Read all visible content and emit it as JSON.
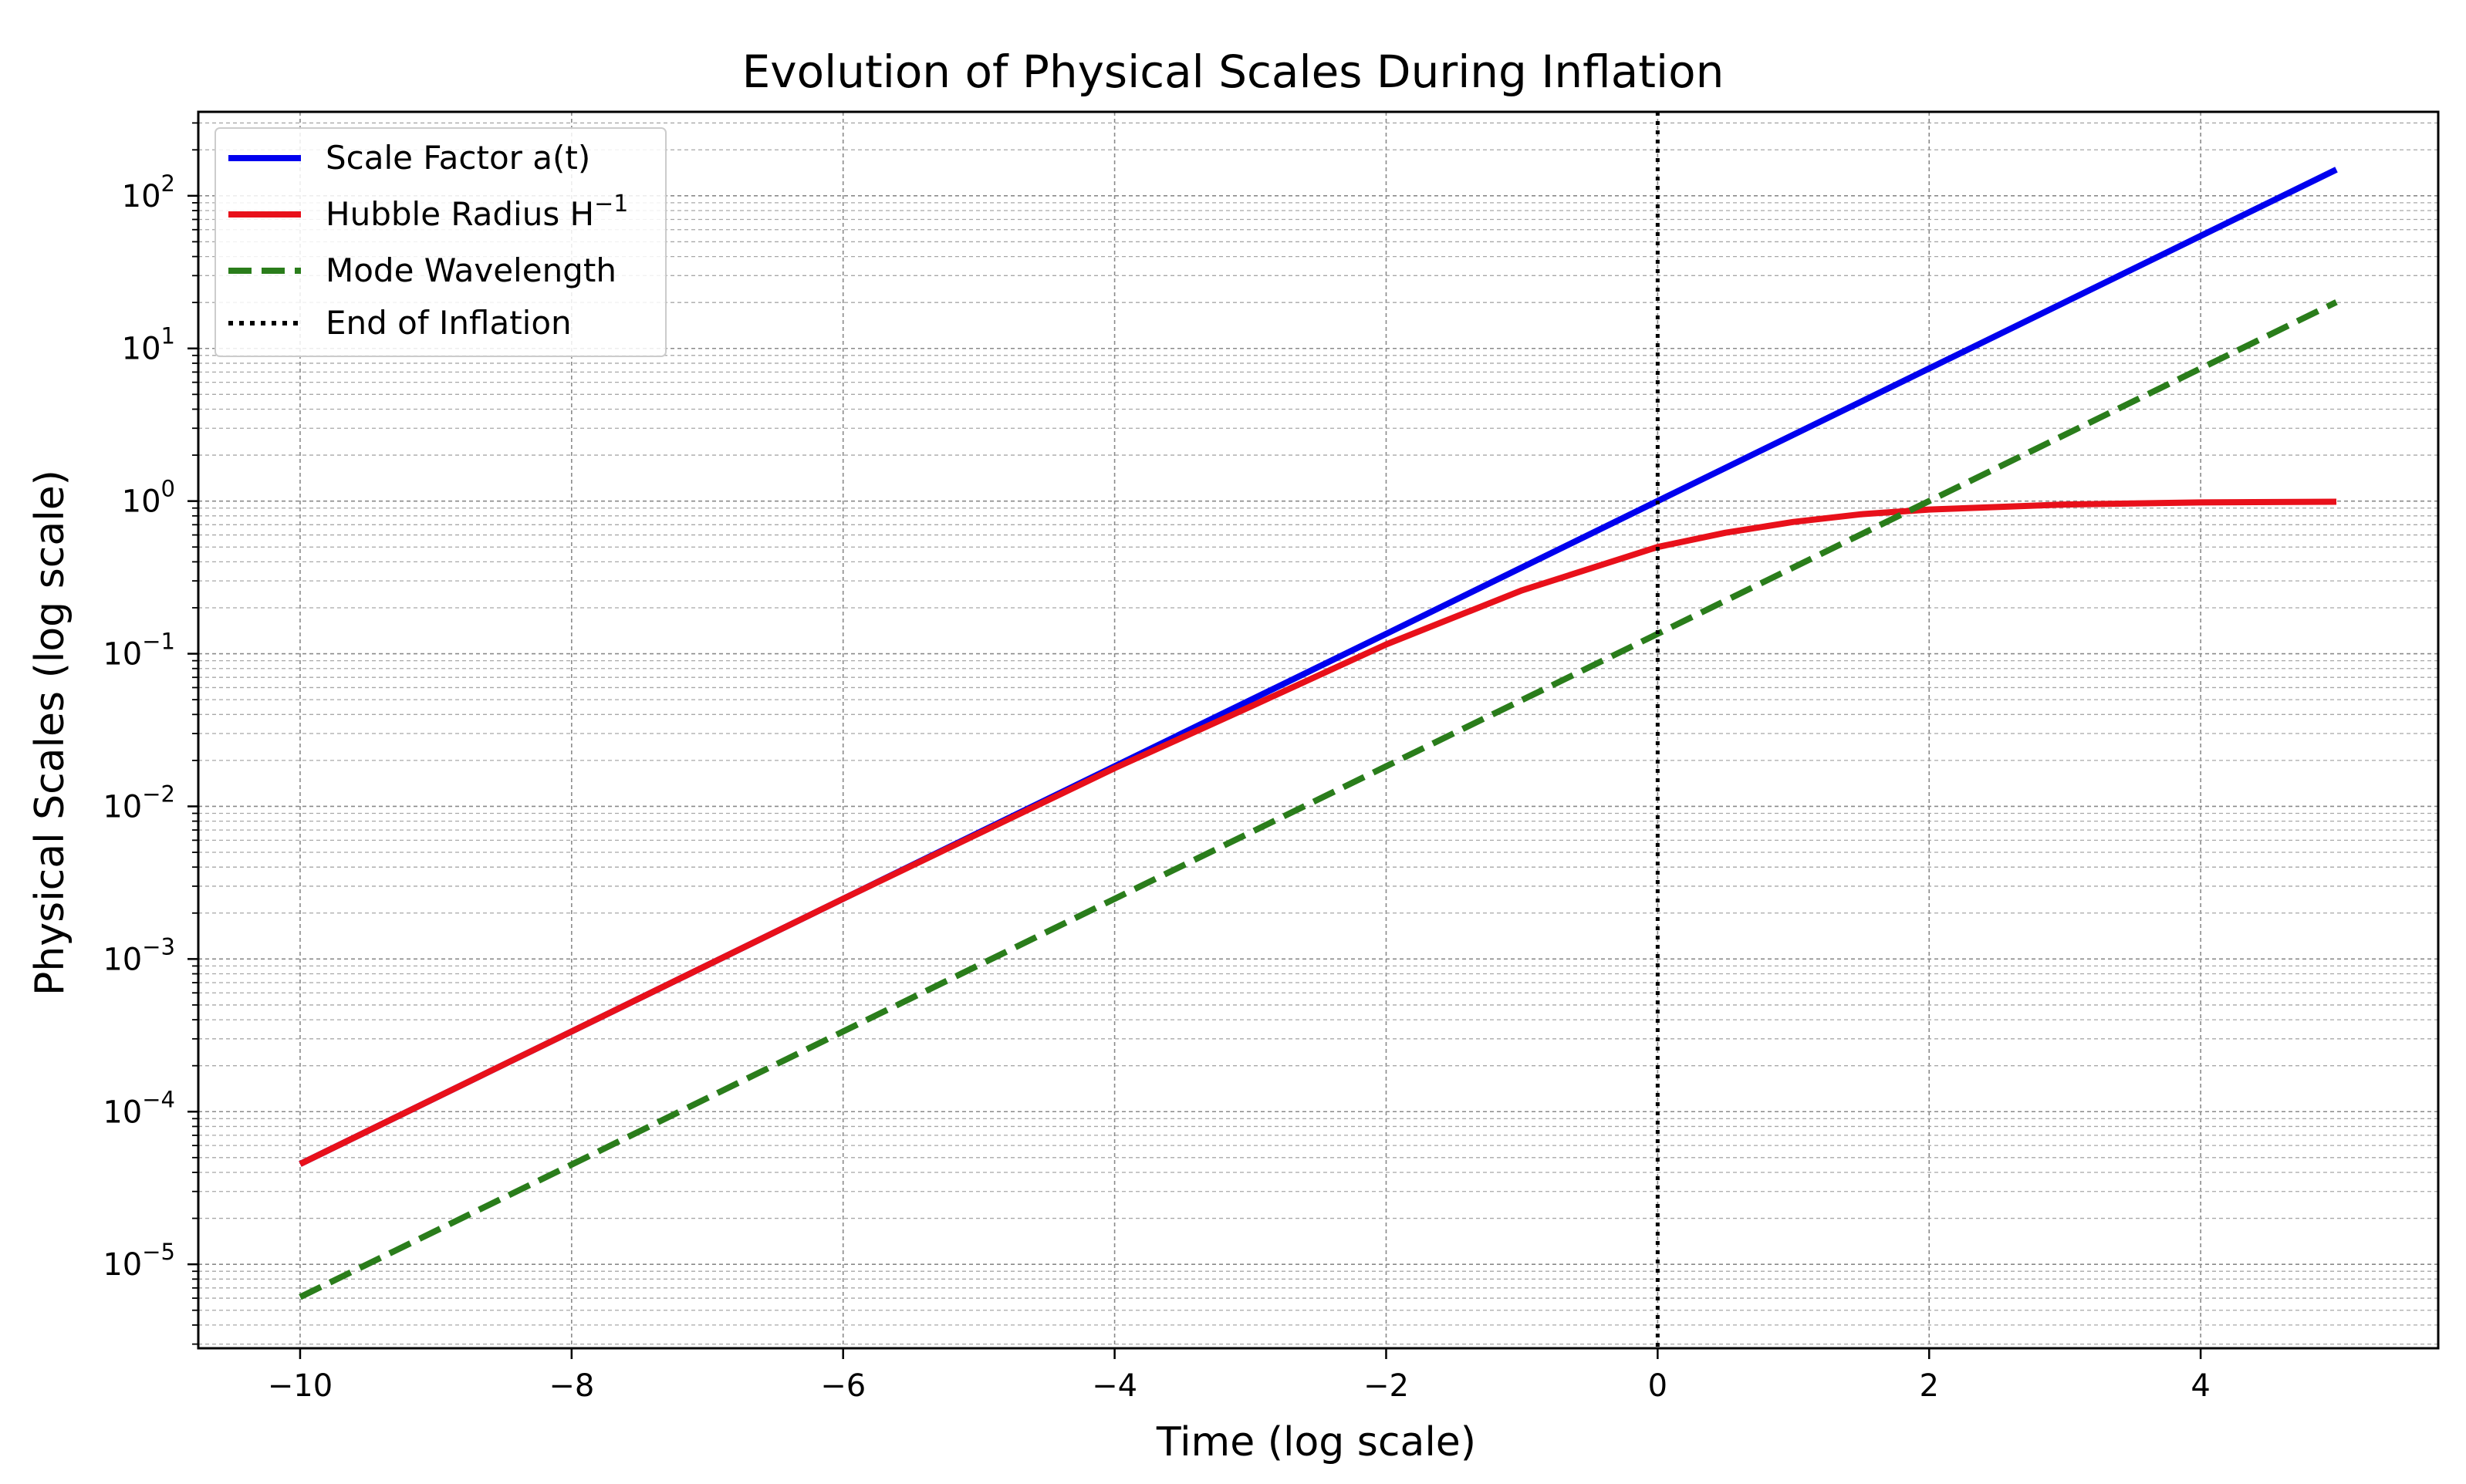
{
  "chart_data": {
    "type": "line",
    "title": "Evolution of Physical Scales During Inflation",
    "xlabel": "Time (log scale)",
    "ylabel": "Physical Scales (log scale)",
    "x_scale": "linear",
    "y_scale": "log",
    "xlim": [
      -10.75,
      5.75
    ],
    "ylim_log10": [
      -5.55,
      2.55
    ],
    "x_ticks": [
      -10,
      -8,
      -6,
      -4,
      -2,
      0,
      2,
      4
    ],
    "x_tick_labels": [
      "−10",
      "−8",
      "−6",
      "−4",
      "−2",
      "0",
      "2",
      "4"
    ],
    "y_ticks_log10": [
      -5,
      -4,
      -3,
      -2,
      -1,
      0,
      1,
      2
    ],
    "y_tick_labels": [
      {
        "base": "10",
        "exp": "−5"
      },
      {
        "base": "10",
        "exp": "−4"
      },
      {
        "base": "10",
        "exp": "−3"
      },
      {
        "base": "10",
        "exp": "−2"
      },
      {
        "base": "10",
        "exp": "−1"
      },
      {
        "base": "10",
        "exp": "0"
      },
      {
        "base": "10",
        "exp": "1"
      },
      {
        "base": "10",
        "exp": "2"
      }
    ],
    "grid": true,
    "legend_position": "top-left",
    "series": [
      {
        "name": "Scale Factor a(t)",
        "color": "#0000ee",
        "style": "solid",
        "x": [
          -10,
          -8,
          -6,
          -4,
          -2,
          0,
          2,
          4,
          5
        ],
        "y": [
          4.54e-05,
          0.000335,
          0.00248,
          0.0183,
          0.135,
          1.0,
          7.39,
          54.6,
          148.4
        ]
      },
      {
        "name": "Hubble Radius H",
        "name_superscript": "−1",
        "color": "#e8101a",
        "style": "solid",
        "x": [
          -10,
          -8,
          -6,
          -4,
          -3,
          -2,
          -1,
          0,
          0.5,
          1,
          1.5,
          2,
          3,
          4,
          5
        ],
        "y": [
          4.54e-05,
          0.000335,
          0.00248,
          0.0178,
          0.045,
          0.115,
          0.26,
          0.5,
          0.62,
          0.73,
          0.82,
          0.88,
          0.95,
          0.98,
          0.99
        ]
      },
      {
        "name": "Mode Wavelength",
        "color": "#2a7d1b",
        "style": "dashed",
        "x": [
          -10,
          -8,
          -6,
          -4,
          -2,
          0,
          2,
          4,
          5
        ],
        "y": [
          6.1e-06,
          4.5e-05,
          0.000335,
          0.00248,
          0.0183,
          0.135,
          1.0,
          7.39,
          20.1
        ]
      },
      {
        "name": "End of Inflation",
        "color": "#000000",
        "style": "dotted",
        "vline_x": 0
      }
    ]
  }
}
